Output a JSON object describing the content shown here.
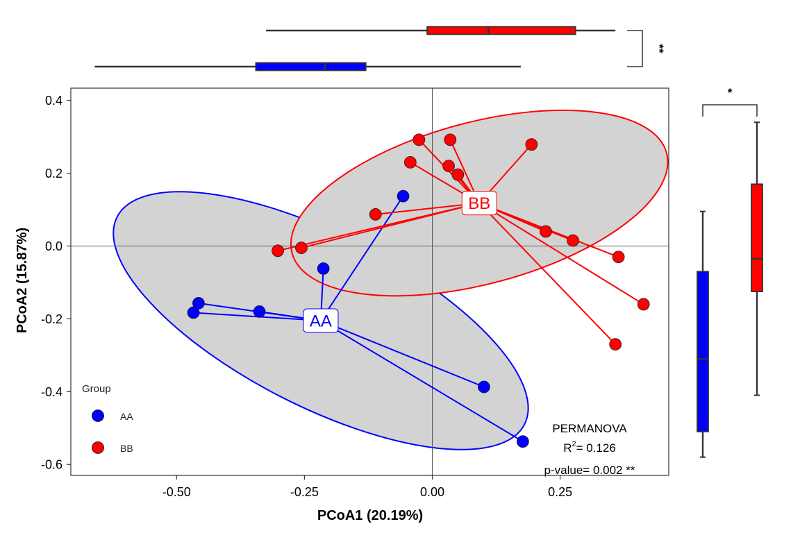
{
  "chart_data": {
    "type": "scatter",
    "xlabel": "PCoA1 (20.19%)",
    "ylabel": "PCoA2 (15.87%)",
    "xlim": [
      -0.71,
      0.465
    ],
    "ylim": [
      -0.625,
      0.43
    ],
    "xticks": [
      -0.5,
      -0.25,
      0.0,
      0.25
    ],
    "xtick_labels": [
      "-0.50",
      "-0.25",
      "0.00",
      "0.25"
    ],
    "yticks": [
      0.4,
      0.2,
      0.0,
      -0.2,
      -0.4,
      -0.6
    ],
    "ytick_labels": [
      "0.4",
      "0.2",
      "0.0",
      "-0.2",
      "-0.4",
      "-0.6"
    ],
    "reference_lines": {
      "x": 0.0,
      "y": 0.0
    },
    "grid": false,
    "legend": {
      "title": "Group",
      "position": "bottom-left"
    },
    "series": [
      {
        "name": "AA",
        "color": "#0000ff",
        "centroid": [
          -0.218,
          -0.205
        ],
        "centroid_label": "AA",
        "points": [
          [
            -0.057,
            0.137
          ],
          [
            -0.213,
            -0.062
          ],
          [
            -0.457,
            -0.157
          ],
          [
            -0.467,
            -0.183
          ],
          [
            -0.338,
            -0.18
          ],
          [
            0.101,
            -0.387
          ],
          [
            0.177,
            -0.537
          ]
        ],
        "ellipse": {
          "cx": -0.218,
          "cy": -0.205,
          "rx": 0.447,
          "ry": 0.236,
          "angle_deg": 27
        }
      },
      {
        "name": "BB",
        "color": "#ff0000",
        "centroid": [
          0.092,
          0.118
        ],
        "centroid_label": "BB",
        "points": [
          [
            -0.026,
            0.292
          ],
          [
            0.035,
            0.292
          ],
          [
            0.194,
            0.279
          ],
          [
            -0.043,
            0.23
          ],
          [
            0.032,
            0.22
          ],
          [
            0.05,
            0.196
          ],
          [
            -0.111,
            0.087
          ],
          [
            -0.302,
            -0.013
          ],
          [
            -0.256,
            -0.005
          ],
          [
            0.222,
            0.04
          ],
          [
            0.275,
            0.015
          ],
          [
            0.364,
            -0.03
          ],
          [
            0.413,
            -0.16
          ],
          [
            0.358,
            -0.27
          ]
        ],
        "ellipse": {
          "cx": 0.092,
          "cy": 0.118,
          "rx": 0.379,
          "ry": 0.222,
          "angle_deg": -15
        }
      }
    ],
    "annotation": {
      "title": "PERMANOVA",
      "r2_label": "R",
      "r2_sup": "2",
      "r2_value": "= 0.126",
      "p_line": "p-value= 0.002 **"
    },
    "marginal_boxplots": {
      "top": {
        "axis": "PCoA1",
        "significance": "**",
        "boxes": [
          {
            "group": "BB",
            "color": "#ff0000",
            "min": -0.325,
            "q1": -0.01,
            "median": 0.11,
            "q3": 0.28,
            "max": 0.358
          },
          {
            "group": "AA",
            "color": "#0000ff",
            "min": -0.66,
            "q1": -0.345,
            "median": -0.21,
            "q3": -0.13,
            "max": 0.173
          }
        ]
      },
      "right": {
        "axis": "PCoA2",
        "significance": "*",
        "boxes": [
          {
            "group": "AA",
            "color": "#0000ff",
            "min": -0.58,
            "q1": -0.51,
            "median": -0.31,
            "q3": -0.07,
            "max": 0.095
          },
          {
            "group": "BB",
            "color": "#ff0000",
            "min": -0.41,
            "q1": -0.125,
            "median": -0.035,
            "q3": 0.17,
            "max": 0.34
          }
        ]
      }
    }
  }
}
